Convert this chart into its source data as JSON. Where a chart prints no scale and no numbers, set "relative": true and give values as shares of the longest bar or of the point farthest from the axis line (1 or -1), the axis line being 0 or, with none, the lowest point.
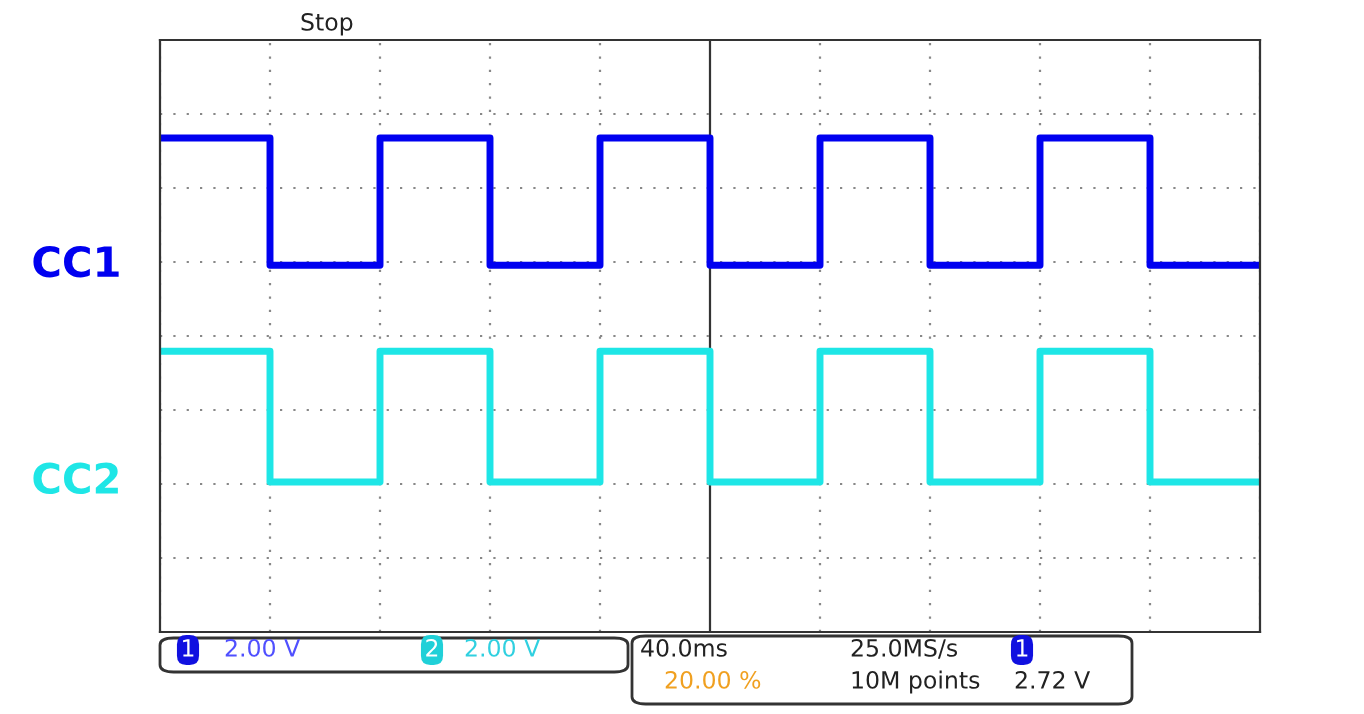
{
  "chart_data": {
    "type": "step",
    "relative": true,
    "categories": [
      null,
      null,
      null,
      null,
      null,
      null,
      null,
      null,
      null,
      null,
      null
    ],
    "series": [
      {
        "name": "CC1",
        "color": "#0000f0",
        "values": [
          1,
          0.63,
          1,
          0.63,
          1,
          0.63,
          1,
          0.63,
          1,
          0.63,
          0.63
        ]
      },
      {
        "name": "CC2",
        "color": "#1ee6e6",
        "values": [
          0.38,
          0,
          0.38,
          0,
          0.38,
          0,
          0.38,
          0,
          0.38,
          0,
          0
        ]
      }
    ],
    "grid": true,
    "legend": false,
    "annotations": [
      "Stop",
      "1",
      "2.00 V",
      "2",
      "2.00 V",
      "40.0ms",
      "25.0MS/s",
      "1",
      "20.00 %",
      "10M points",
      "2.72 V"
    ]
  }
}
